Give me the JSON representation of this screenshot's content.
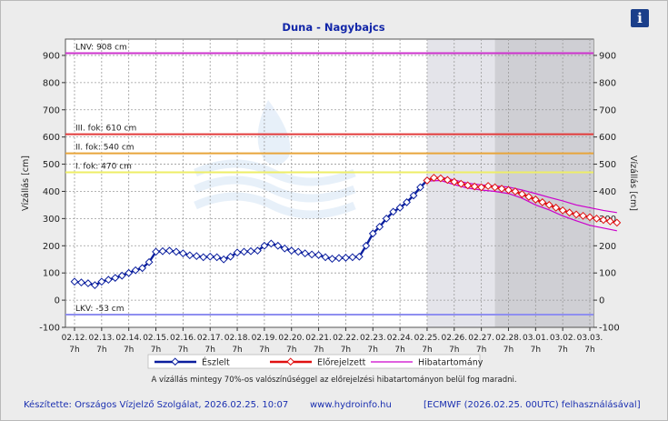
{
  "chart_data": {
    "type": "line",
    "title": "Duna - Nagybajcs",
    "ylabel": "Vízállás [cm]",
    "ylabel_right": "Vízállás [cm]",
    "ylim": [
      -100,
      960
    ],
    "yticks": [
      -100,
      0,
      100,
      200,
      300,
      400,
      500,
      600,
      700,
      800,
      900
    ],
    "grid": true,
    "x_tick_labels": [
      "02.12.",
      "02.13.",
      "02.14.",
      "02.15.",
      "02.16.",
      "02.17.",
      "02.18.",
      "02.19.",
      "02.20.",
      "02.21.",
      "02.22.",
      "02.23.",
      "02.24.",
      "02.25.",
      "02.26.",
      "02.27.",
      "02.28.",
      "03.01.",
      "03.02.",
      "03.03."
    ],
    "x_tick_sublabel": "7h",
    "reference_lines": [
      {
        "label": "LNV: 908 cm",
        "value": 908,
        "color": "#cc33cc"
      },
      {
        "label": "III. fok: 610 cm",
        "value": 610,
        "color": "#e23b3b"
      },
      {
        "label": "II. fok: 540 cm",
        "value": 540,
        "color": "#e8a53a"
      },
      {
        "label": "I. fok: 470 cm",
        "value": 470,
        "color": "#eeee66"
      },
      {
        "label": "LKV: -53 cm",
        "value": -53,
        "color": "#8f8ff0"
      }
    ],
    "shaded_regions": [
      {
        "from_day": 13.0,
        "to_day": 15.5,
        "color": "#e4e4ea"
      },
      {
        "from_day": 15.5,
        "to_day": 20.0,
        "color": "#cfcfd4"
      }
    ],
    "series": [
      {
        "name": "Észlelt",
        "color": "#0a1e9e",
        "x_days": [
          0.0,
          0.25,
          0.5,
          0.75,
          1.0,
          1.25,
          1.5,
          1.75,
          2.0,
          2.25,
          2.5,
          2.75,
          3.0,
          3.25,
          3.5,
          3.75,
          4.0,
          4.25,
          4.5,
          4.75,
          5.0,
          5.25,
          5.5,
          5.75,
          6.0,
          6.25,
          6.5,
          6.75,
          7.0,
          7.25,
          7.5,
          7.75,
          8.0,
          8.25,
          8.5,
          8.75,
          9.0,
          9.25,
          9.5,
          9.75,
          10.0,
          10.25,
          10.5,
          10.75,
          11.0,
          11.25,
          11.5,
          11.75,
          12.0,
          12.25,
          12.5,
          12.75,
          13.0
        ],
        "values": [
          68,
          65,
          62,
          55,
          68,
          75,
          82,
          90,
          100,
          110,
          118,
          140,
          178,
          180,
          182,
          178,
          172,
          165,
          162,
          158,
          160,
          158,
          150,
          160,
          175,
          178,
          180,
          182,
          200,
          208,
          200,
          190,
          182,
          178,
          172,
          168,
          166,
          158,
          152,
          155,
          156,
          158,
          160,
          200,
          245,
          270,
          300,
          325,
          340,
          360,
          385,
          415,
          440
        ]
      },
      {
        "name": "Előrejelzett",
        "color": "#e01010",
        "x_days": [
          13.0,
          13.25,
          13.5,
          13.75,
          14.0,
          14.25,
          14.5,
          14.75,
          15.0,
          15.25,
          15.5,
          15.75,
          16.0,
          16.25,
          16.5,
          16.75,
          17.0,
          17.25,
          17.5,
          17.75,
          18.0,
          18.25,
          18.5,
          18.75,
          19.0,
          19.25,
          19.5,
          19.75,
          20.0
        ],
        "values": [
          440,
          450,
          448,
          442,
          435,
          428,
          422,
          418,
          415,
          420,
          415,
          410,
          405,
          400,
          390,
          380,
          370,
          360,
          350,
          340,
          330,
          322,
          315,
          310,
          305,
          300,
          295,
          290,
          285
        ]
      },
      {
        "name": "Hibatartomány",
        "color": "#cc00cc",
        "x_days": [
          13.0,
          13.5,
          14.0,
          14.5,
          15.0,
          15.5,
          16.0,
          16.5,
          17.0,
          17.5,
          18.0,
          18.5,
          19.0,
          19.5,
          20.0
        ],
        "upper": [
          442,
          452,
          442,
          430,
          424,
          420,
          416,
          405,
          392,
          378,
          365,
          350,
          340,
          330,
          322
        ],
        "lower": [
          438,
          440,
          425,
          412,
          405,
          400,
          392,
          375,
          350,
          332,
          310,
          292,
          275,
          265,
          255
        ]
      }
    ],
    "legend": [
      "Észlelt",
      "Előrejelzett",
      "Hibatartomány"
    ],
    "legend_position": "bottom",
    "annotation": "A vízállás mintegy 70%-os valószínűséggel az előrejelzési hibatartományon belül fog maradni."
  },
  "footer": {
    "author": "Készítette: Országos Vízjelző Szolgálat, 2026.02.25. 10:07",
    "url": "www.hydroinfo.hu",
    "source": "[ECMWF (2026.02.25. 00UTC) felhasználásával]"
  },
  "info_icon": "info-icon",
  "info_label": "i"
}
